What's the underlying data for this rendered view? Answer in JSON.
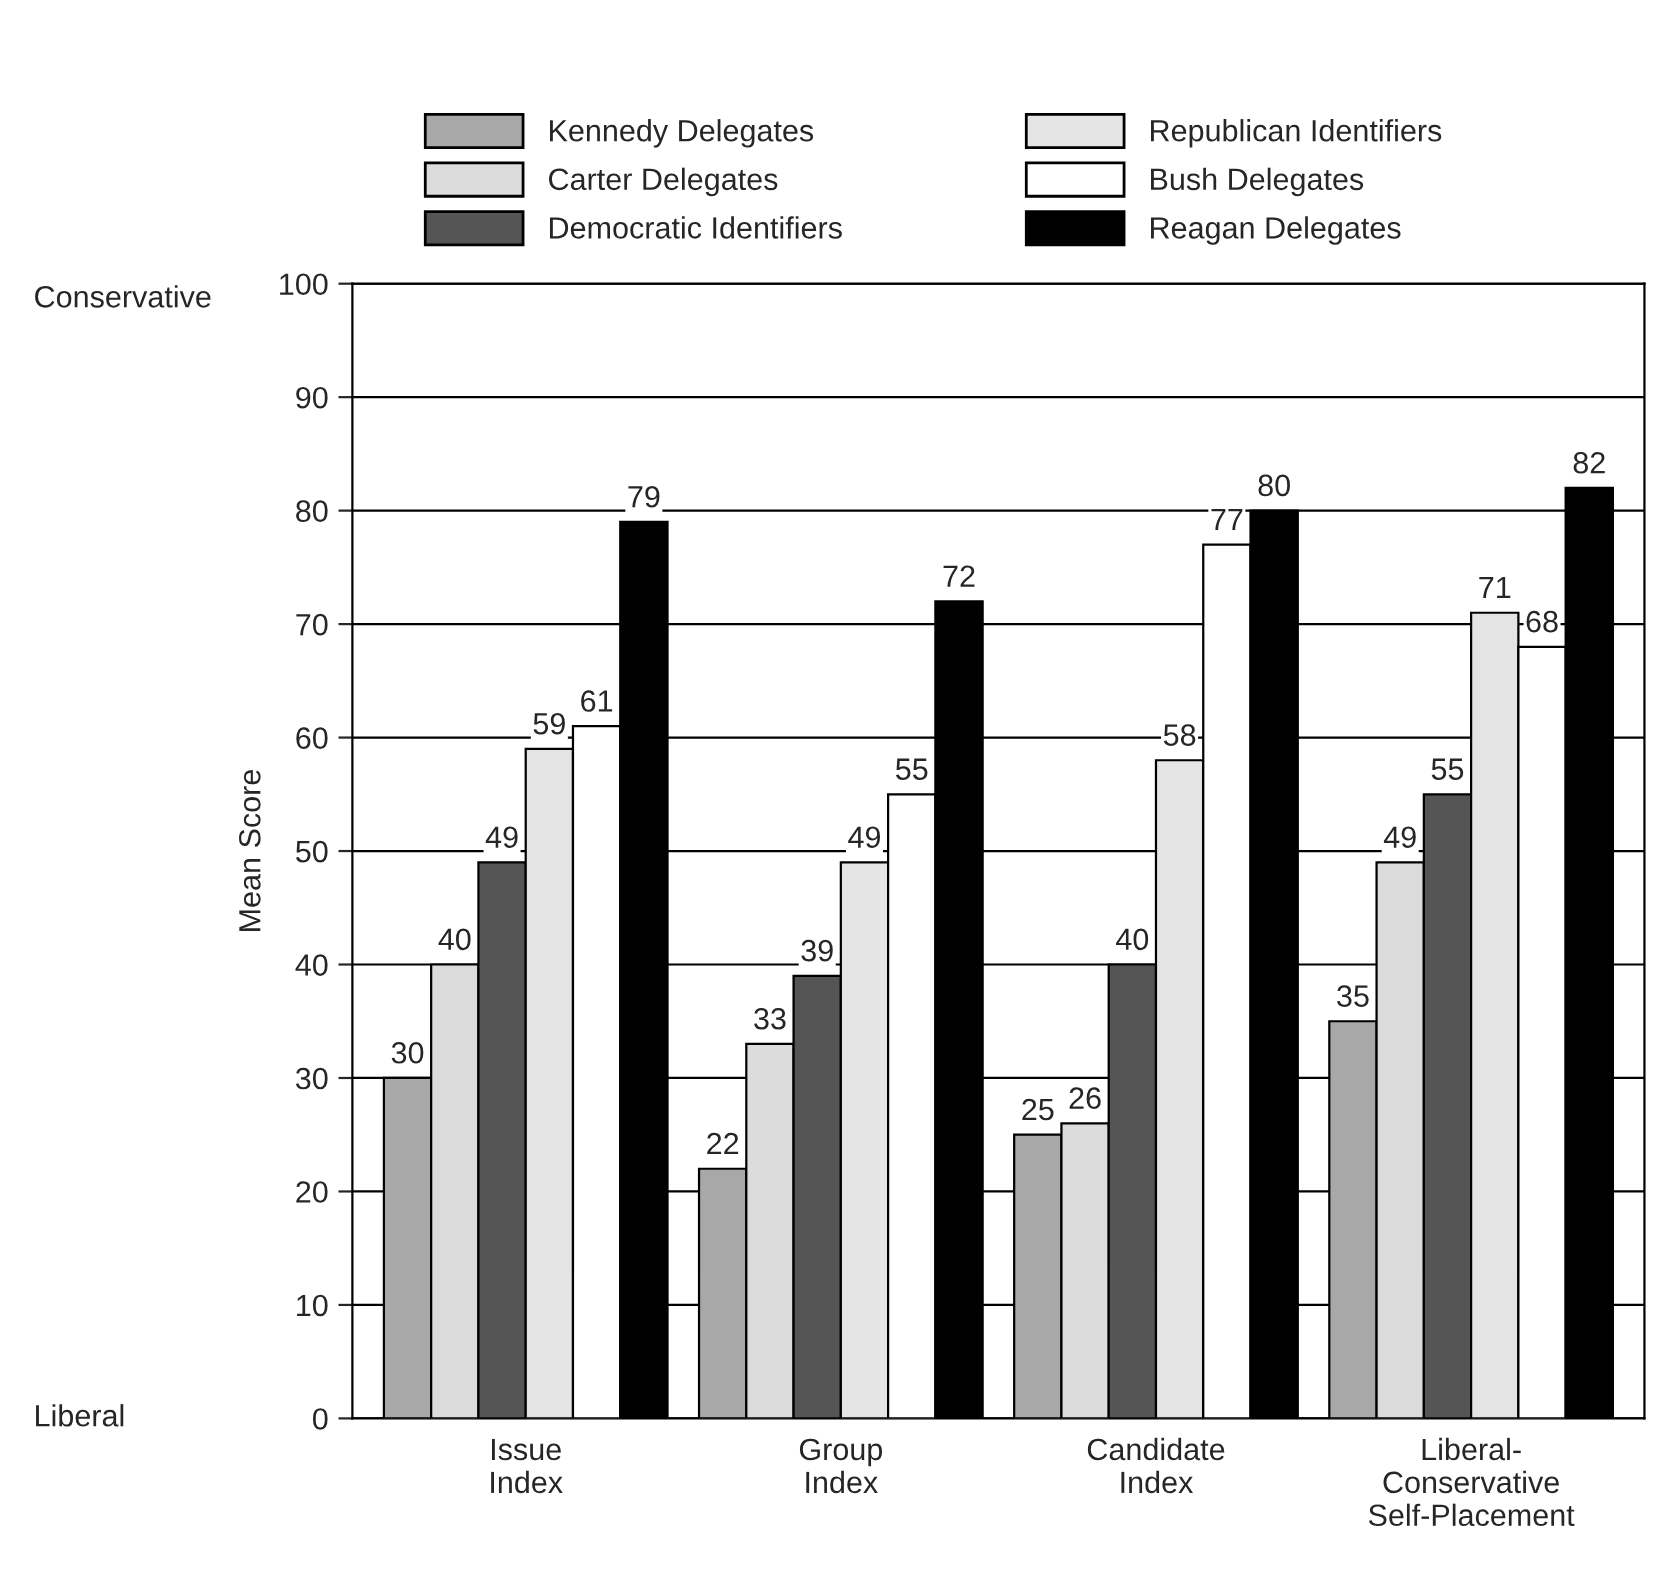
{
  "chart_data": {
    "type": "bar",
    "ylabel": "Mean Score",
    "categories": [
      "Issue\nIndex",
      "Group\nIndex",
      "Candidate\nIndex",
      "Liberal-\nConservative\nSelf-Placement"
    ],
    "series": [
      {
        "name": "Kennedy Delegates",
        "color": "#a8a8a8",
        "values": [
          30,
          22,
          25,
          35
        ]
      },
      {
        "name": "Carter Delegates",
        "color": "#dcdcdc",
        "values": [
          40,
          33,
          26,
          49
        ]
      },
      {
        "name": "Democratic Identifiers",
        "color": "#555555",
        "values": [
          49,
          39,
          40,
          55
        ]
      },
      {
        "name": "Republican Identifiers",
        "color": "#e4e4e4",
        "values": [
          59,
          49,
          58,
          71
        ]
      },
      {
        "name": "Bush Delegates",
        "color": "#ffffff",
        "values": [
          61,
          55,
          77,
          68
        ]
      },
      {
        "name": "Reagan Delegates",
        "color": "#000000",
        "values": [
          79,
          72,
          80,
          82
        ]
      }
    ],
    "ylim": [
      0,
      100
    ],
    "yticks": [
      0,
      10,
      20,
      30,
      40,
      50,
      60,
      70,
      80,
      90,
      100
    ],
    "grid": "y",
    "legend": "top",
    "data_labels": true,
    "annotations": [
      "Conservative",
      "Liberal"
    ]
  }
}
